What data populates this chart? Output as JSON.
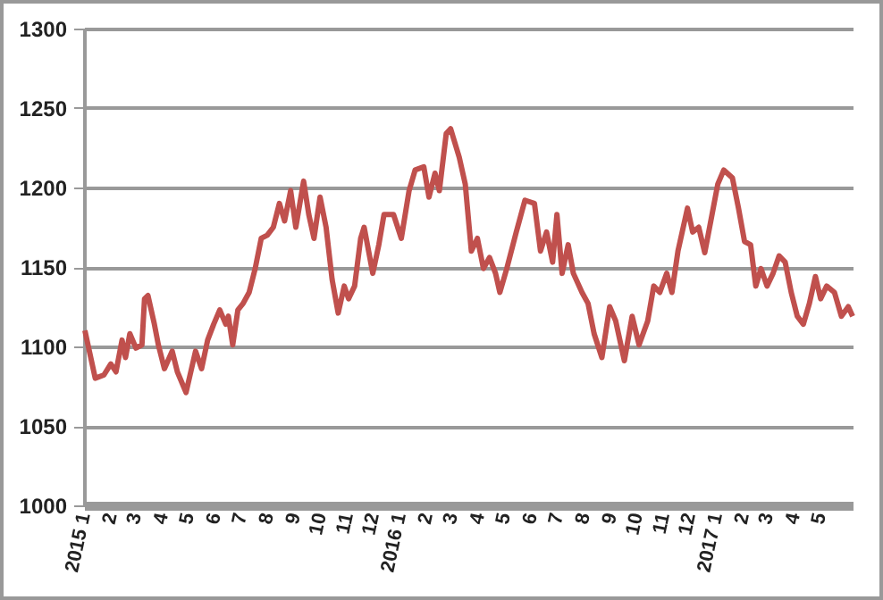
{
  "chart_data": {
    "type": "line",
    "x": [
      "2015-01-02",
      "2015-01-14",
      "2015-01-24",
      "2015-02-01",
      "2015-02-07",
      "2015-02-14",
      "2015-02-18",
      "2015-02-23",
      "2015-03-02",
      "2015-03-09",
      "2015-03-12",
      "2015-03-16",
      "2015-03-23",
      "2015-03-28",
      "2015-04-04",
      "2015-04-13",
      "2015-04-19",
      "2015-04-29",
      "2015-05-10",
      "2015-05-17",
      "2015-05-24",
      "2015-05-31",
      "2015-06-07",
      "2015-06-14",
      "2015-06-17",
      "2015-06-22",
      "2015-06-28",
      "2015-07-04",
      "2015-07-11",
      "2015-07-18",
      "2015-07-25",
      "2015-08-01",
      "2015-08-08",
      "2015-08-15",
      "2015-08-21",
      "2015-08-28",
      "2015-09-03",
      "2015-09-12",
      "2015-09-18",
      "2015-09-24",
      "2015-10-01",
      "2015-10-08",
      "2015-10-15",
      "2015-10-22",
      "2015-10-29",
      "2015-11-03",
      "2015-11-10",
      "2015-11-17",
      "2015-11-21",
      "2015-12-01",
      "2015-12-08",
      "2015-12-14",
      "2015-12-25",
      "2016-01-03",
      "2016-01-12",
      "2016-01-19",
      "2016-01-29",
      "2016-02-04",
      "2016-02-11",
      "2016-02-16",
      "2016-02-24",
      "2016-02-29",
      "2016-03-10",
      "2016-03-17",
      "2016-03-24",
      "2016-03-31",
      "2016-04-07",
      "2016-04-14",
      "2016-04-21",
      "2016-04-26",
      "2016-05-04",
      "2016-05-15",
      "2016-05-25",
      "2016-06-05",
      "2016-06-12",
      "2016-06-19",
      "2016-06-26",
      "2016-07-01",
      "2016-07-07",
      "2016-07-14",
      "2016-07-20",
      "2016-07-30",
      "2016-08-06",
      "2016-08-13",
      "2016-08-22",
      "2016-08-31",
      "2016-09-07",
      "2016-09-17",
      "2016-09-26",
      "2016-10-04",
      "2016-10-14",
      "2016-10-21",
      "2016-10-28",
      "2016-11-05",
      "2016-11-11",
      "2016-11-18",
      "2016-11-29",
      "2016-12-05",
      "2016-12-12",
      "2016-12-19",
      "2016-12-26",
      "2017-01-03",
      "2017-01-10",
      "2017-01-20",
      "2017-01-27",
      "2017-02-03",
      "2017-02-10",
      "2017-02-16",
      "2017-02-22",
      "2017-03-01",
      "2017-03-08",
      "2017-03-15",
      "2017-03-22",
      "2017-03-29",
      "2017-04-05",
      "2017-04-12",
      "2017-04-19",
      "2017-04-26",
      "2017-05-02",
      "2017-05-09",
      "2017-05-18",
      "2017-05-26",
      "2017-06-03",
      "2017-06-08"
    ],
    "series": [
      {
        "color": "#c0504d",
        "values": [
          1110,
          1080,
          1082,
          1089,
          1084,
          1104,
          1093,
          1108,
          1099,
          1101,
          1130,
          1132,
          1115,
          1101,
          1086,
          1097,
          1084,
          1071,
          1097,
          1086,
          1104,
          1114,
          1123,
          1114,
          1119,
          1101,
          1123,
          1127,
          1134,
          1149,
          1168,
          1170,
          1175,
          1190,
          1179,
          1198,
          1175,
          1204,
          1183,
          1168,
          1194,
          1175,
          1142,
          1121,
          1138,
          1130,
          1138,
          1168,
          1175,
          1146,
          1164,
          1183,
          1183,
          1168,
          1198,
          1211,
          1213,
          1194,
          1209,
          1198,
          1234,
          1237,
          1219,
          1202,
          1160,
          1168,
          1149,
          1156,
          1146,
          1134,
          1149,
          1172,
          1192,
          1190,
          1160,
          1172,
          1153,
          1183,
          1146,
          1164,
          1146,
          1134,
          1127,
          1108,
          1093,
          1125,
          1116,
          1091,
          1119,
          1101,
          1116,
          1138,
          1134,
          1146,
          1134,
          1160,
          1187,
          1172,
          1175,
          1159,
          1179,
          1202,
          1211,
          1206,
          1187,
          1166,
          1164,
          1138,
          1149,
          1138,
          1146,
          1157,
          1153,
          1134,
          1119,
          1114,
          1127,
          1144,
          1130,
          1138,
          1134,
          1119,
          1125,
          1119
        ]
      }
    ],
    "xlim": [
      "2015-01-01",
      "2017-06-08"
    ],
    "xticks": [
      {
        "value": "2015-01-01",
        "label": "2015 1"
      },
      {
        "value": "2015-02-01",
        "label": "2"
      },
      {
        "value": "2015-03-01",
        "label": "3"
      },
      {
        "value": "2015-04-01",
        "label": "4"
      },
      {
        "value": "2015-05-01",
        "label": "5"
      },
      {
        "value": "2015-06-01",
        "label": "6"
      },
      {
        "value": "2015-07-01",
        "label": "7"
      },
      {
        "value": "2015-08-01",
        "label": "8"
      },
      {
        "value": "2015-09-01",
        "label": "9"
      },
      {
        "value": "2015-10-01",
        "label": "10"
      },
      {
        "value": "2015-11-01",
        "label": "11"
      },
      {
        "value": "2015-12-01",
        "label": "12"
      },
      {
        "value": "2016-01-01",
        "label": "2016 1"
      },
      {
        "value": "2016-02-01",
        "label": "2"
      },
      {
        "value": "2016-03-01",
        "label": "3"
      },
      {
        "value": "2016-04-01",
        "label": "4"
      },
      {
        "value": "2016-05-01",
        "label": "5"
      },
      {
        "value": "2016-06-01",
        "label": "6"
      },
      {
        "value": "2016-07-01",
        "label": "7"
      },
      {
        "value": "2016-08-01",
        "label": "8"
      },
      {
        "value": "2016-09-01",
        "label": "9"
      },
      {
        "value": "2016-10-01",
        "label": "10"
      },
      {
        "value": "2016-11-01",
        "label": "11"
      },
      {
        "value": "2016-12-01",
        "label": "12"
      },
      {
        "value": "2017-01-01",
        "label": "2017 1"
      },
      {
        "value": "2017-02-01",
        "label": "2"
      },
      {
        "value": "2017-03-01",
        "label": "3"
      },
      {
        "value": "2017-04-01",
        "label": "4"
      },
      {
        "value": "2017-05-01",
        "label": "5"
      }
    ],
    "ylim": [
      1000,
      1300
    ],
    "yticks": [
      1000,
      1050,
      1100,
      1150,
      1200,
      1250,
      1300
    ],
    "grid": "y",
    "marker": "none",
    "line_style": "solid"
  }
}
